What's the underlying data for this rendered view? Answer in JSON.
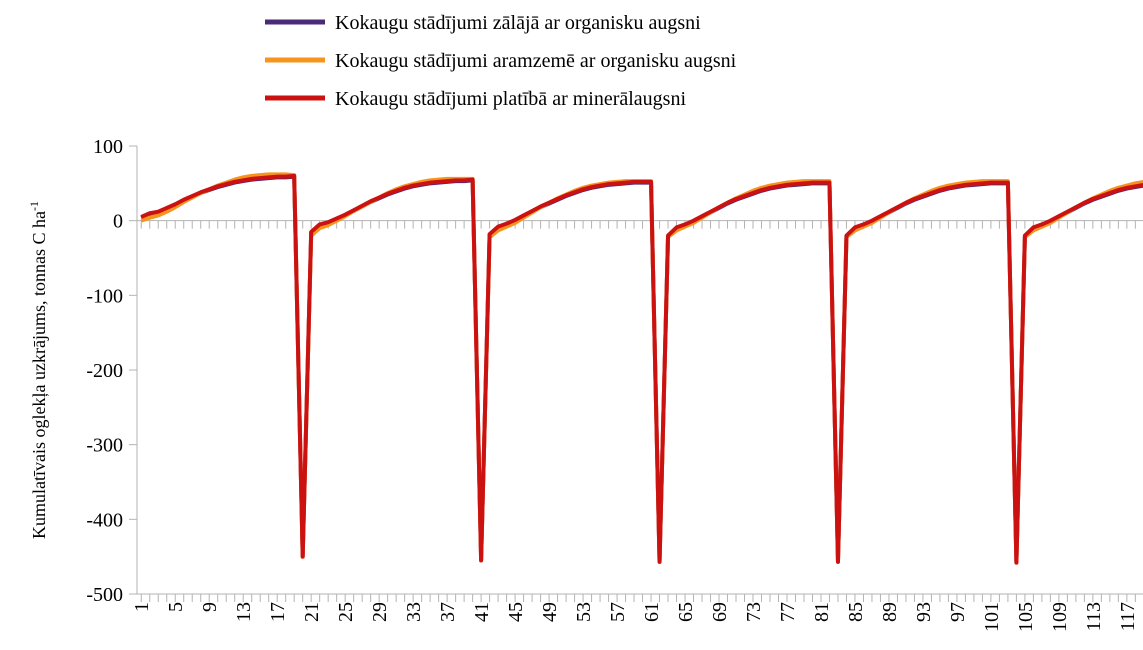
{
  "chart_data": {
    "type": "line",
    "y_label": "Kumulatīvais oglekļa uzkrājums, tonnas C ha",
    "y_label_superscript": "-1",
    "legend": "top",
    "x": [
      1,
      2,
      3,
      4,
      5,
      6,
      7,
      8,
      9,
      10,
      11,
      12,
      13,
      14,
      15,
      16,
      17,
      18,
      19,
      20,
      21,
      22,
      23,
      24,
      25,
      26,
      27,
      28,
      29,
      30,
      31,
      32,
      33,
      34,
      35,
      36,
      37,
      38,
      39,
      40,
      41,
      42,
      43,
      44,
      45,
      46,
      47,
      48,
      49,
      50,
      51,
      52,
      53,
      54,
      55,
      56,
      57,
      58,
      59,
      60,
      61,
      62,
      63,
      64,
      65,
      66,
      67,
      68,
      69,
      70,
      71,
      72,
      73,
      74,
      75,
      76,
      77,
      78,
      79,
      80,
      81,
      82,
      83,
      84,
      85,
      86,
      87,
      88,
      89,
      90,
      91,
      92,
      93,
      94,
      95,
      96,
      97,
      98,
      99,
      100,
      101,
      102,
      103,
      104,
      105,
      106,
      107,
      108,
      109,
      110,
      111,
      112,
      113,
      114,
      115,
      116,
      117,
      118,
      119
    ],
    "xlim": [
      0.5,
      118.9
    ],
    "xticks": [
      1,
      5,
      9,
      13,
      17,
      21,
      25,
      29,
      33,
      37,
      41,
      45,
      49,
      53,
      57,
      61,
      65,
      69,
      73,
      77,
      81,
      85,
      89,
      93,
      97,
      101,
      105,
      109,
      113,
      117
    ],
    "ylim": [
      -500,
      100
    ],
    "yticks": [
      100,
      0,
      -100,
      -200,
      -300,
      -400,
      -500
    ],
    "series": [
      {
        "name": "Kokaugu stādījumi zālājā ar organisku augsni",
        "color": "#4b2a7a",
        "values": [
          4,
          9,
          11,
          16,
          21,
          27,
          32,
          37,
          41,
          45,
          48,
          51,
          53,
          55,
          56,
          57,
          58,
          58,
          59,
          -449,
          -16,
          -6,
          -3,
          2,
          7,
          13,
          19,
          25,
          30,
          35,
          39,
          43,
          46,
          48,
          50,
          51,
          52,
          53,
          53,
          54,
          -454,
          -19,
          -9,
          -5,
          0,
          6,
          12,
          18,
          23,
          28,
          33,
          37,
          41,
          44,
          46,
          48,
          49,
          50,
          51,
          51,
          51,
          -456,
          -21,
          -10,
          -6,
          -1,
          5,
          11,
          17,
          23,
          28,
          32,
          36,
          40,
          43,
          45,
          47,
          48,
          49,
          50,
          50,
          50,
          -456,
          -21,
          -10,
          -6,
          -1,
          5,
          11,
          17,
          23,
          28,
          32,
          36,
          40,
          43,
          45,
          47,
          48,
          49,
          50,
          50,
          50,
          -457,
          -21,
          -10,
          -6,
          -1,
          5,
          11,
          17,
          23,
          28,
          32,
          36,
          40,
          43,
          45,
          47
        ]
      },
      {
        "name": "Kokaugu stādījumi aramzemē ar organisku augsni",
        "color": "#f7941d",
        "values": [
          0,
          4,
          7,
          12,
          18,
          25,
          31,
          37,
          42,
          47,
          51,
          55,
          58,
          60,
          61,
          62,
          62,
          62,
          61,
          -450,
          -20,
          -10,
          -6,
          0,
          6,
          13,
          19,
          25,
          31,
          37,
          42,
          46,
          49,
          52,
          54,
          55,
          56,
          56,
          56,
          56,
          -455,
          -22,
          -13,
          -8,
          -3,
          4,
          11,
          18,
          24,
          30,
          35,
          40,
          44,
          47,
          49,
          51,
          52,
          53,
          53,
          53,
          53,
          -457,
          -22,
          -13,
          -8,
          -3,
          4,
          11,
          18,
          24,
          30,
          35,
          40,
          44,
          47,
          49,
          51,
          52,
          53,
          53,
          53,
          53,
          -457,
          -22,
          -13,
          -8,
          -3,
          4,
          11,
          18,
          24,
          30,
          35,
          40,
          44,
          47,
          49,
          51,
          52,
          53,
          53,
          53,
          53,
          -458,
          -22,
          -13,
          -8,
          -3,
          4,
          11,
          18,
          24,
          30,
          35,
          40,
          44,
          47,
          50,
          52
        ]
      },
      {
        "name": "Kokaugu stādījumi platībā ar minerālaugsni",
        "color": "#cc1111",
        "values": [
          5,
          10,
          12,
          17,
          22,
          28,
          33,
          38,
          42,
          46,
          49,
          52,
          54,
          56,
          57,
          58,
          59,
          59,
          60,
          -450,
          -15,
          -5,
          -2,
          3,
          8,
          14,
          20,
          26,
          31,
          36,
          40,
          44,
          47,
          49,
          51,
          52,
          53,
          54,
          54,
          55,
          -455,
          -18,
          -8,
          -4,
          1,
          7,
          13,
          19,
          24,
          29,
          34,
          38,
          42,
          45,
          47,
          49,
          50,
          51,
          52,
          52,
          52,
          -457,
          -20,
          -9,
          -5,
          0,
          6,
          12,
          18,
          24,
          29,
          33,
          37,
          41,
          44,
          46,
          48,
          49,
          50,
          51,
          51,
          51,
          -457,
          -20,
          -9,
          -5,
          0,
          6,
          12,
          18,
          24,
          29,
          33,
          37,
          41,
          44,
          46,
          48,
          49,
          50,
          51,
          51,
          51,
          -458,
          -20,
          -9,
          -5,
          0,
          6,
          12,
          18,
          24,
          29,
          33,
          37,
          41,
          44,
          46,
          48
        ]
      }
    ]
  }
}
